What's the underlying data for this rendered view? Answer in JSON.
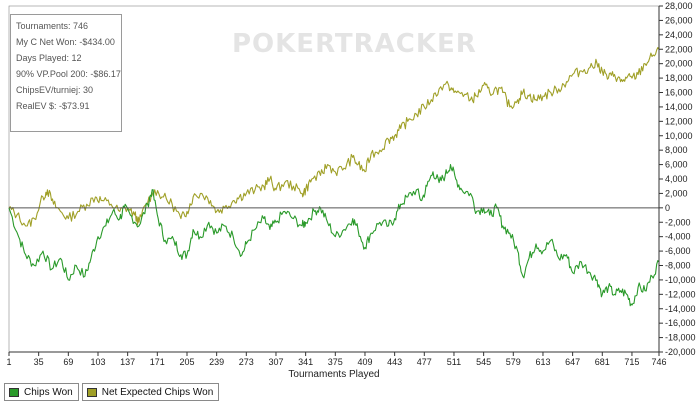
{
  "watermark": "POKERTRACKER",
  "stats_box": {
    "lines": [
      "Tournaments: 746",
      "My C Net Won: -$434.00",
      "Days Played: 12",
      "90% VP.Pool 200: -$86.17",
      "ChipsEV/turniej: 30",
      "RealEV $: -$73.91"
    ]
  },
  "chart_data": {
    "type": "line",
    "title": "",
    "xlabel": "Tournaments Played",
    "ylabel": "",
    "x_ticks": [
      1,
      35,
      69,
      103,
      137,
      171,
      205,
      239,
      273,
      307,
      341,
      375,
      409,
      443,
      477,
      511,
      545,
      579,
      613,
      647,
      681,
      715,
      746
    ],
    "xlim": [
      1,
      746
    ],
    "y_ticks": [
      28000,
      26000,
      24000,
      22000,
      20000,
      18000,
      16000,
      14000,
      12000,
      10000,
      8000,
      6000,
      4000,
      2000,
      0,
      -2000,
      -4000,
      -6000,
      -8000,
      -10000,
      -12000,
      -14000,
      -16000,
      -18000,
      -20000
    ],
    "y_tick_labels": [
      "28,000",
      "26,000",
      "24,000",
      "22,000",
      "20,000",
      "18,000",
      "16,000",
      "14,000",
      "12,000",
      "10,000",
      "8,000",
      "6,000",
      "4,000",
      "2,000",
      "0",
      "-2,000",
      "-4,000",
      "-6,000",
      "-8,000",
      "-10,000",
      "-12,000",
      "-14,000",
      "-16,000",
      "-18,000",
      "-20,000"
    ],
    "ylim": [
      -20000,
      28000
    ],
    "y_axis_side": "right",
    "zero_line": true,
    "grid": false,
    "legend_position": "bottom-left",
    "series": [
      {
        "name": "Chips Won",
        "color": "#2a9a2a",
        "points": [
          [
            1,
            0
          ],
          [
            12,
            -4000
          ],
          [
            20,
            -6500
          ],
          [
            30,
            -8000
          ],
          [
            40,
            -6000
          ],
          [
            50,
            -8500
          ],
          [
            60,
            -7000
          ],
          [
            69,
            -10000
          ],
          [
            78,
            -8000
          ],
          [
            88,
            -9500
          ],
          [
            95,
            -7000
          ],
          [
            103,
            -4000
          ],
          [
            112,
            -2500
          ],
          [
            120,
            -500
          ],
          [
            128,
            -1500
          ],
          [
            133,
            0
          ],
          [
            140,
            -1000
          ],
          [
            150,
            -2500
          ],
          [
            160,
            500
          ],
          [
            165,
            2500
          ],
          [
            172,
            -1500
          ],
          [
            180,
            -4500
          ],
          [
            190,
            -4500
          ],
          [
            198,
            -6500
          ],
          [
            205,
            -6500
          ],
          [
            212,
            -3000
          ],
          [
            220,
            -4000
          ],
          [
            230,
            -2000
          ],
          [
            239,
            -3500
          ],
          [
            248,
            -2500
          ],
          [
            258,
            -4000
          ],
          [
            268,
            -6500
          ],
          [
            273,
            -5000
          ],
          [
            283,
            -3000
          ],
          [
            293,
            -1500
          ],
          [
            300,
            -3000
          ],
          [
            307,
            -2000
          ],
          [
            317,
            -500
          ],
          [
            327,
            -1500
          ],
          [
            337,
            -2500
          ],
          [
            341,
            -2000
          ],
          [
            351,
            -500
          ],
          [
            358,
            0
          ],
          [
            366,
            -2000
          ],
          [
            375,
            -4000
          ],
          [
            385,
            -3000
          ],
          [
            395,
            -1500
          ],
          [
            401,
            -3000
          ],
          [
            409,
            -5500
          ],
          [
            416,
            -3500
          ],
          [
            426,
            -2000
          ],
          [
            436,
            -2500
          ],
          [
            443,
            -1500
          ],
          [
            450,
            500
          ],
          [
            458,
            1500
          ],
          [
            468,
            2500
          ],
          [
            474,
            1000
          ],
          [
            480,
            3000
          ],
          [
            487,
            5000
          ],
          [
            494,
            3500
          ],
          [
            501,
            4500
          ],
          [
            507,
            6000
          ],
          [
            513,
            4000
          ],
          [
            520,
            2500
          ],
          [
            530,
            2000
          ],
          [
            537,
            -500
          ],
          [
            545,
            0
          ],
          [
            552,
            -1000
          ],
          [
            560,
            0
          ],
          [
            567,
            -2500
          ],
          [
            575,
            -3500
          ],
          [
            584,
            -6000
          ],
          [
            590,
            -9500
          ],
          [
            597,
            -7000
          ],
          [
            605,
            -5000
          ],
          [
            613,
            -6000
          ],
          [
            622,
            -4500
          ],
          [
            631,
            -7000
          ],
          [
            640,
            -6500
          ],
          [
            647,
            -9000
          ],
          [
            657,
            -7500
          ],
          [
            667,
            -9000
          ],
          [
            675,
            -10000
          ],
          [
            681,
            -12000
          ],
          [
            688,
            -11000
          ],
          [
            695,
            -12000
          ],
          [
            702,
            -11500
          ],
          [
            709,
            -12000
          ],
          [
            715,
            -13500
          ],
          [
            722,
            -11000
          ],
          [
            730,
            -11500
          ],
          [
            738,
            -9500
          ],
          [
            746,
            -7500
          ]
        ]
      },
      {
        "name": "Net Expected Chips Won",
        "color": "#a0a028",
        "points": [
          [
            1,
            0
          ],
          [
            10,
            -1000
          ],
          [
            22,
            -2500
          ],
          [
            30,
            -1500
          ],
          [
            40,
            1500
          ],
          [
            45,
            2500
          ],
          [
            52,
            500
          ],
          [
            60,
            -500
          ],
          [
            69,
            -1500
          ],
          [
            80,
            -500
          ],
          [
            90,
            500
          ],
          [
            100,
            1500
          ],
          [
            108,
            1000
          ],
          [
            118,
            500
          ],
          [
            128,
            -500
          ],
          [
            137,
            0
          ],
          [
            145,
            -1000
          ],
          [
            150,
            -2000
          ],
          [
            158,
            500
          ],
          [
            168,
            2500
          ],
          [
            178,
            1500
          ],
          [
            188,
            500
          ],
          [
            198,
            -1500
          ],
          [
            205,
            -500
          ],
          [
            212,
            1500
          ],
          [
            222,
            2000
          ],
          [
            232,
            1000
          ],
          [
            239,
            -500
          ],
          [
            248,
            0
          ],
          [
            258,
            1000
          ],
          [
            265,
            1500
          ],
          [
            273,
            2000
          ],
          [
            283,
            2500
          ],
          [
            293,
            3000
          ],
          [
            300,
            4000
          ],
          [
            307,
            2500
          ],
          [
            317,
            3500
          ],
          [
            327,
            3000
          ],
          [
            337,
            2000
          ],
          [
            341,
            2500
          ],
          [
            348,
            4000
          ],
          [
            358,
            4500
          ],
          [
            366,
            6000
          ],
          [
            375,
            5000
          ],
          [
            385,
            5500
          ],
          [
            395,
            7000
          ],
          [
            401,
            6000
          ],
          [
            409,
            5000
          ],
          [
            416,
            7500
          ],
          [
            426,
            8000
          ],
          [
            436,
            9500
          ],
          [
            443,
            10000
          ],
          [
            450,
            11000
          ],
          [
            458,
            12000
          ],
          [
            468,
            13000
          ],
          [
            477,
            14000
          ],
          [
            485,
            15000
          ],
          [
            494,
            16500
          ],
          [
            505,
            17000
          ],
          [
            511,
            16000
          ],
          [
            520,
            16000
          ],
          [
            530,
            15000
          ],
          [
            537,
            15500
          ],
          [
            545,
            17000
          ],
          [
            552,
            16000
          ],
          [
            560,
            16500
          ],
          [
            567,
            16000
          ],
          [
            575,
            14000
          ],
          [
            584,
            15000
          ],
          [
            590,
            16000
          ],
          [
            597,
            15500
          ],
          [
            605,
            15000
          ],
          [
            613,
            15500
          ],
          [
            622,
            16000
          ],
          [
            631,
            16500
          ],
          [
            640,
            17500
          ],
          [
            647,
            18500
          ],
          [
            657,
            19000
          ],
          [
            667,
            19500
          ],
          [
            675,
            20000
          ],
          [
            681,
            19000
          ],
          [
            688,
            18000
          ],
          [
            695,
            18500
          ],
          [
            702,
            17500
          ],
          [
            709,
            18000
          ],
          [
            715,
            18000
          ],
          [
            722,
            18500
          ],
          [
            730,
            20000
          ],
          [
            738,
            21000
          ],
          [
            746,
            22000
          ]
        ]
      }
    ]
  }
}
